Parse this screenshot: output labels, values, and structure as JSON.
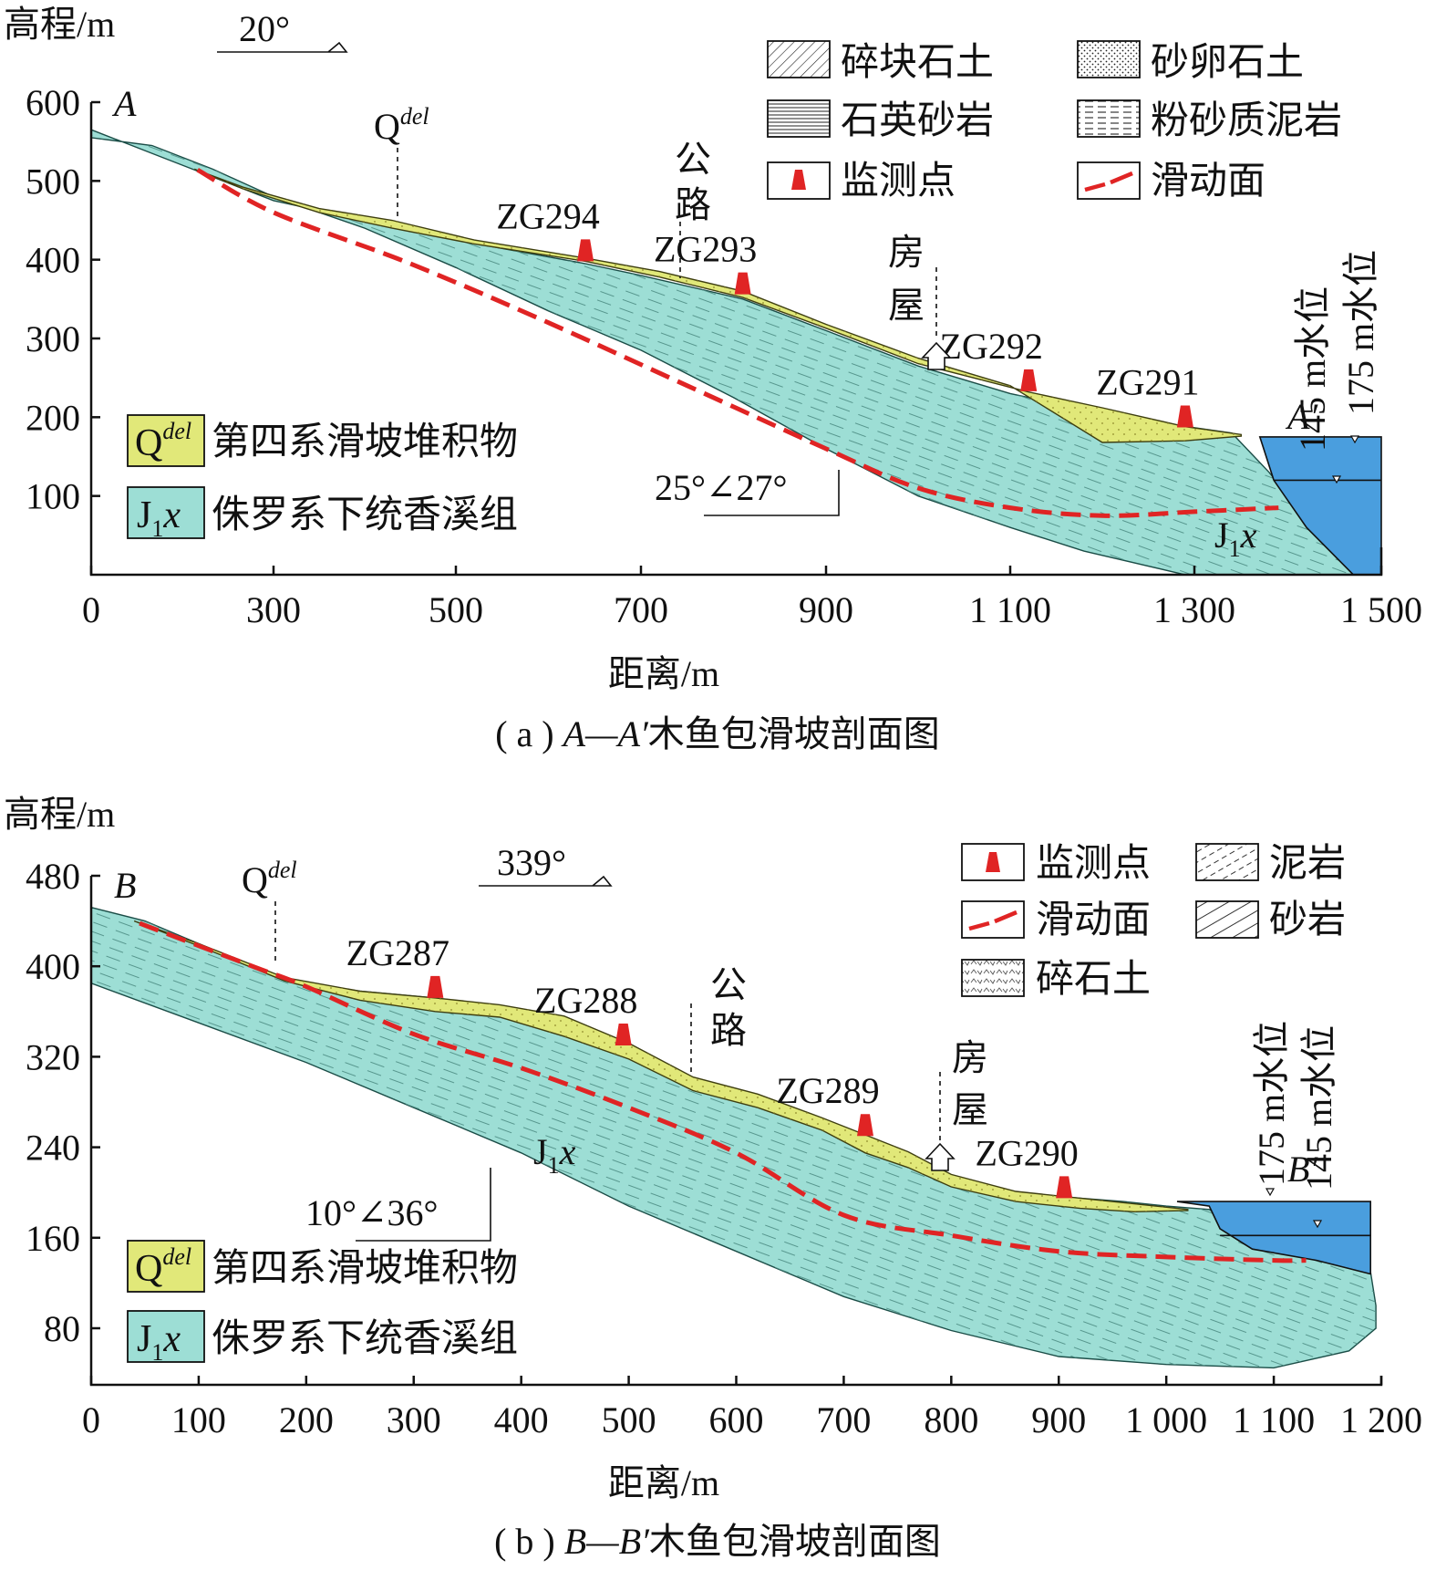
{
  "colors": {
    "bedrock": "#9dded5",
    "deposit": "#e1e879",
    "water": "#4a9ede",
    "slip": "#e02424",
    "marker": "#e02424"
  },
  "panel_a": {
    "ylabel": "高程/m",
    "xlabel": "距离/m",
    "caption_pre": "( a ) ",
    "caption_id": "A—A′",
    "caption_post": "木鱼包滑坡剖面图",
    "direction": "20°",
    "section_start": "A",
    "section_end": "A′",
    "qdel": "Q",
    "qdel_sup": "del",
    "y_ticks": [
      "600",
      "500",
      "400",
      "300",
      "200",
      "100"
    ],
    "x_ticks": [
      "0",
      "300",
      "500",
      "700",
      "900",
      "1 100",
      "1 300",
      "1 500"
    ],
    "attitude": "25°∠27°",
    "unit_label_j": "J",
    "unit_label_sub": "1",
    "unit_label_x": "x",
    "road_label": [
      "公",
      "路"
    ],
    "house_label": [
      "房",
      "屋"
    ],
    "water_145": "145 m水位",
    "water_175": "175 m水位",
    "monitors": [
      {
        "id": "ZG294",
        "x": 640,
        "y": 398
      },
      {
        "id": "ZG293",
        "x": 810,
        "y": 356
      },
      {
        "id": "ZG292",
        "x": 1120,
        "y": 233
      },
      {
        "id": "ZG291",
        "x": 1290,
        "y": 187
      }
    ],
    "legend_patterns": [
      {
        "label": "碎块石土",
        "icon": "hatch-icon"
      },
      {
        "label": "砂卵石土",
        "icon": "dotted-icon"
      },
      {
        "label": "石英砂岩",
        "icon": "fine-lines-icon"
      },
      {
        "label": "粉砂质泥岩",
        "icon": "dashed-lines-icon"
      },
      {
        "label": "监测点",
        "icon": "marker-icon"
      },
      {
        "label": "滑动面",
        "icon": "slip-line-icon"
      }
    ],
    "legend_units": [
      {
        "sym": "Q",
        "sup": "del",
        "label": "第四系滑坡堆积物"
      },
      {
        "sym": "J",
        "sub": "1",
        "tail": "x",
        "label": "侏罗系下统香溪组"
      }
    ]
  },
  "panel_b": {
    "ylabel": "高程/m",
    "xlabel": "距离/m",
    "caption_pre": "( b ) ",
    "caption_id": "B—B′",
    "caption_post": "木鱼包滑坡剖面图",
    "direction": "339°",
    "section_start": "B",
    "section_end": "B′",
    "qdel": "Q",
    "qdel_sup": "del",
    "y_ticks": [
      "480",
      "400",
      "320",
      "240",
      "160",
      "80"
    ],
    "x_ticks": [
      "0",
      "100",
      "200",
      "300",
      "400",
      "500",
      "600",
      "700",
      "800",
      "900",
      "1 000",
      "1 100",
      "1 200"
    ],
    "attitude": "10°∠36°",
    "unit_label_j": "J",
    "unit_label_sub": "1",
    "unit_label_x": "x",
    "road_label": [
      "公",
      "路"
    ],
    "house_label": [
      "房",
      "屋"
    ],
    "water_175": "175 m水位",
    "water_145": "145 m水位",
    "monitors": [
      {
        "id": "ZG287",
        "x": 320,
        "y": 372
      },
      {
        "id": "ZG288",
        "x": 495,
        "y": 330
      },
      {
        "id": "ZG289",
        "x": 720,
        "y": 250
      },
      {
        "id": "ZG290",
        "x": 905,
        "y": 195
      }
    ],
    "legend_patterns": [
      {
        "label": "监测点",
        "icon": "marker-icon"
      },
      {
        "label": "泥岩",
        "icon": "mudstone-icon"
      },
      {
        "label": "滑动面",
        "icon": "slip-line-icon"
      },
      {
        "label": "砂岩",
        "icon": "sandstone-icon"
      },
      {
        "label": "碎石土",
        "icon": "gravel-icon"
      }
    ],
    "legend_units": [
      {
        "sym": "Q",
        "sup": "del",
        "label": "第四系滑坡堆积物"
      },
      {
        "sym": "J",
        "sub": "1",
        "tail": "x",
        "label": "侏罗系下统香溪组"
      }
    ]
  }
}
